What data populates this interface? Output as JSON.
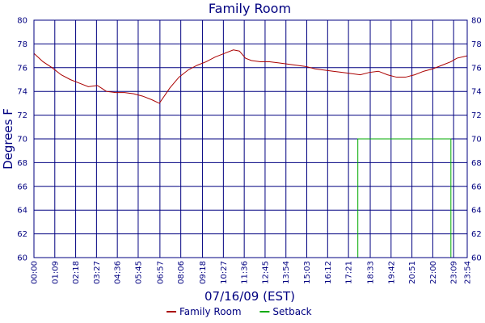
{
  "chart_data": {
    "type": "line",
    "title": "Family Room",
    "xlabel": "07/16/09 (EST)",
    "ylabel": "Degrees F",
    "x_unit": "time of day",
    "xlim": [
      "00:00",
      "23:54"
    ],
    "ylim": [
      60,
      80
    ],
    "x_ticks": [
      "00:00",
      "01:09",
      "02:18",
      "03:27",
      "04:36",
      "05:45",
      "06:57",
      "08:06",
      "09:18",
      "10:27",
      "11:36",
      "12:45",
      "13:54",
      "15:03",
      "16:12",
      "17:21",
      "18:33",
      "19:42",
      "20:51",
      "22:00",
      "23:09",
      "23:54"
    ],
    "y_ticks_left": [
      "60",
      "62",
      "64",
      "66",
      "68",
      "70",
      "72",
      "74",
      "76",
      "78",
      "80"
    ],
    "y_ticks_right": [
      "60",
      "62",
      "64",
      "66",
      "68",
      "70",
      "72",
      "74",
      "76",
      "78",
      "80"
    ],
    "grid": true,
    "legend_position": "bottom-center",
    "series": [
      {
        "name": "Family Room",
        "color": "#aa0000",
        "x": [
          "00:00",
          "00:30",
          "01:00",
          "01:30",
          "02:00",
          "02:30",
          "03:00",
          "03:30",
          "04:00",
          "04:30",
          "05:00",
          "05:30",
          "06:00",
          "06:30",
          "06:55",
          "07:30",
          "08:00",
          "08:30",
          "09:00",
          "09:30",
          "10:00",
          "10:30",
          "11:00",
          "11:20",
          "11:40",
          "12:00",
          "12:30",
          "13:00",
          "13:30",
          "14:00",
          "14:30",
          "15:00",
          "15:30",
          "16:00",
          "16:30",
          "17:00",
          "17:30",
          "18:00",
          "18:30",
          "19:00",
          "19:30",
          "20:00",
          "20:30",
          "21:00",
          "21:30",
          "22:00",
          "22:30",
          "23:00",
          "23:20",
          "23:54"
        ],
        "y": [
          77.2,
          76.5,
          76.0,
          75.4,
          75.0,
          74.7,
          74.4,
          74.5,
          74.0,
          73.9,
          73.9,
          73.8,
          73.6,
          73.3,
          73.0,
          74.3,
          75.2,
          75.8,
          76.2,
          76.5,
          76.9,
          77.2,
          77.5,
          77.4,
          76.8,
          76.6,
          76.5,
          76.5,
          76.4,
          76.3,
          76.2,
          76.1,
          75.9,
          75.8,
          75.7,
          75.6,
          75.5,
          75.4,
          75.6,
          75.7,
          75.4,
          75.2,
          75.2,
          75.4,
          75.7,
          75.9,
          76.2,
          76.5,
          76.8,
          77.0
        ]
      },
      {
        "name": "Setback",
        "color": "#00aa00",
        "x": [
          "00:00",
          "17:52",
          "17:52",
          "23:00",
          "23:00",
          "23:54"
        ],
        "y": [
          60,
          60,
          70,
          70,
          60,
          60
        ]
      }
    ]
  }
}
